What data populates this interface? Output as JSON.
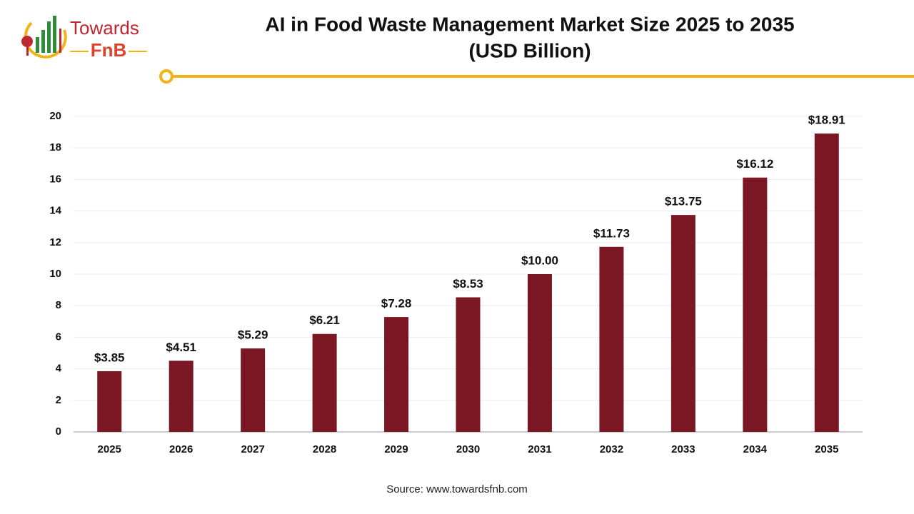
{
  "logo": {
    "name": "Towards",
    "sub": "FnB"
  },
  "chart_data": {
    "type": "bar",
    "title": "AI in Food Waste Management Market Size 2025 to 2035",
    "subtitle": "(USD Billion)",
    "categories": [
      "2025",
      "2026",
      "2027",
      "2028",
      "2029",
      "2030",
      "2031",
      "2032",
      "2033",
      "2034",
      "2035"
    ],
    "values": [
      3.85,
      4.51,
      5.29,
      6.21,
      7.28,
      8.53,
      10.0,
      11.73,
      13.75,
      16.12,
      18.91
    ],
    "value_labels": [
      "$3.85",
      "$4.51",
      "$5.29",
      "$6.21",
      "$7.28",
      "$8.53",
      "$10.00",
      "$11.73",
      "$13.75",
      "$16.12",
      "$18.91"
    ],
    "color": "#7b1723",
    "ylim": [
      0,
      20
    ],
    "yticks": [
      0,
      2,
      4,
      6,
      8,
      10,
      12,
      14,
      16,
      18,
      20
    ],
    "grid": true,
    "source": "Source: www.towardsfnb.com"
  }
}
